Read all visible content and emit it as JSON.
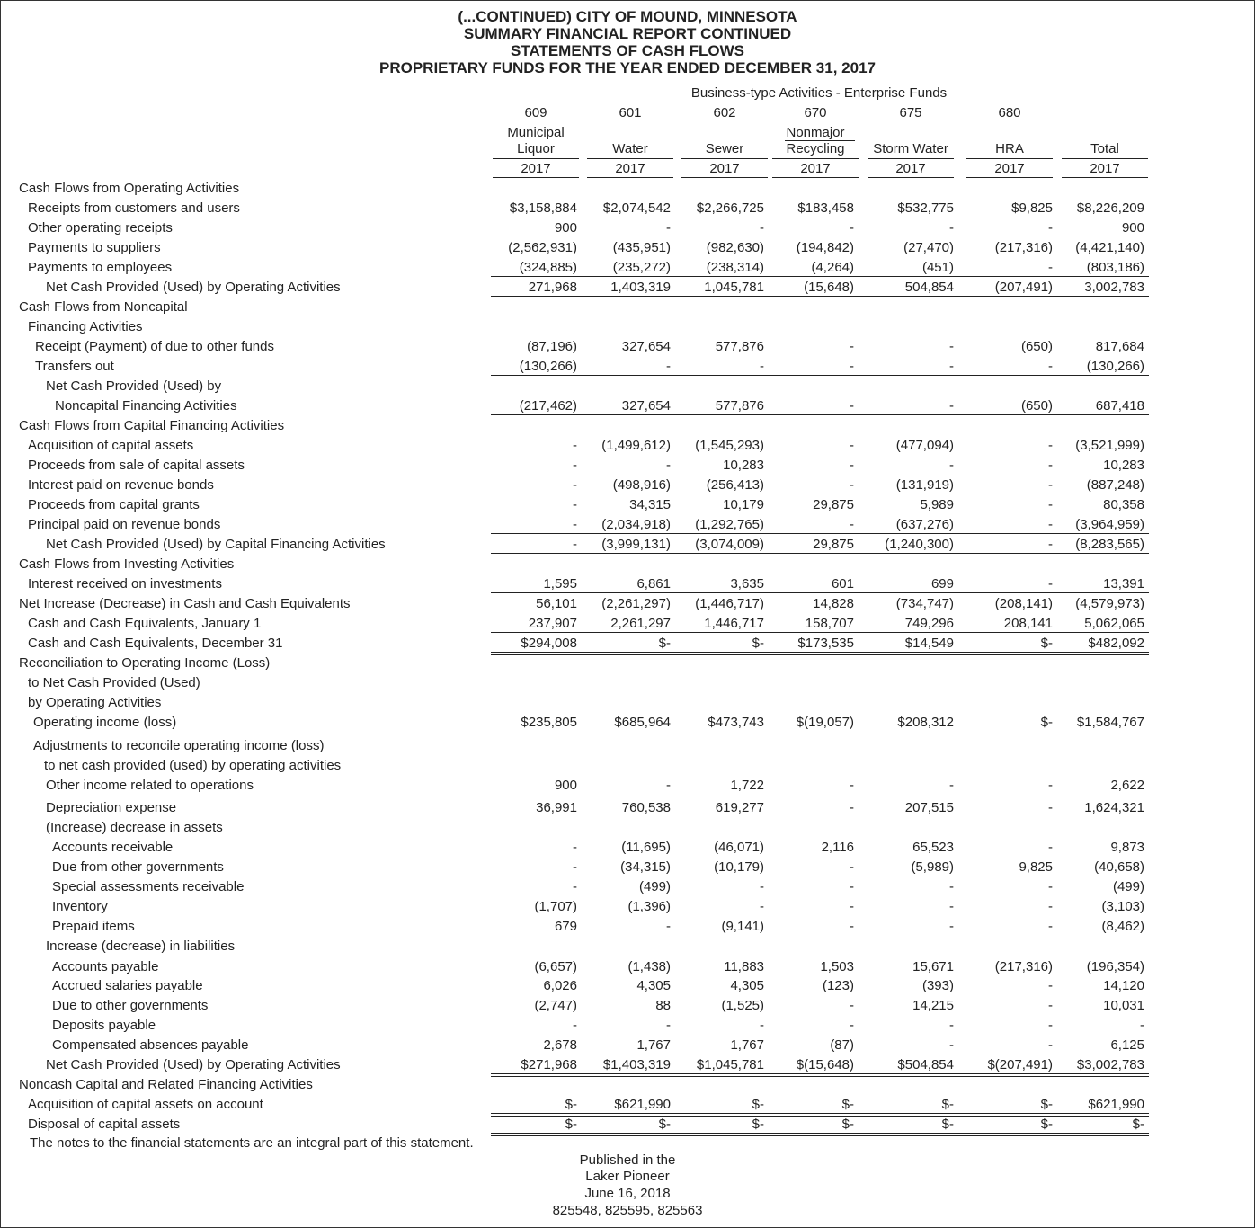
{
  "header": {
    "title": [
      "(...CONTINUED) CITY OF MOUND, MINNESOTA",
      "SUMMARY FINANCIAL REPORT CONTINUED",
      "STATEMENTS OF CASH FLOWS",
      "PROPRIETARY FUNDS FOR THE YEAR ENDED DECEMBER 31, 2017"
    ],
    "group": "Business-type Activities - Enterprise Funds",
    "columns": [
      {
        "number": "609",
        "name": [
          "Municipal",
          "Liquor"
        ],
        "year": "2017"
      },
      {
        "number": "601",
        "name": [
          "Water"
        ],
        "year": "2017"
      },
      {
        "number": "602",
        "name": [
          "Sewer"
        ],
        "year": "2017"
      },
      {
        "number": "670",
        "name": [
          "Nonmajor",
          "Recycling"
        ],
        "year": "2017"
      },
      {
        "number": "675",
        "name": [
          "Storm Water"
        ],
        "year": "2017"
      },
      {
        "number": "680",
        "name": [
          "HRA"
        ],
        "year": "2017"
      },
      {
        "name": [
          "Total"
        ],
        "year": "2017"
      }
    ]
  },
  "rows": [
    {
      "label": "Cash Flows from Operating Activities"
    },
    {
      "label": "Receipts from customers and users",
      "values": [
        "$3,158,884",
        "$2,074,542",
        "$2,266,725",
        "$183,458",
        "$532,775",
        "$9,825",
        "$8,226,209"
      ]
    },
    {
      "label": "Other operating receipts",
      "values": [
        "900",
        "-",
        "-",
        "-",
        "-",
        "-",
        "900"
      ]
    },
    {
      "label": "Payments to suppliers",
      "values": [
        "(2,562,931)",
        "(435,951)",
        "(982,630)",
        "(194,842)",
        "(27,470)",
        "(217,316)",
        "(4,421,140)"
      ]
    },
    {
      "label": "Payments to employees",
      "values": [
        "(324,885)",
        "(235,272)",
        "(238,314)",
        "(4,264)",
        "(451)",
        "-",
        "(803,186)"
      ]
    },
    {
      "label": "Net Cash Provided (Used) by Operating Activities",
      "values": [
        "271,968",
        "1,403,319",
        "1,045,781",
        "(15,648)",
        "504,854",
        "(207,491)",
        "3,002,783"
      ]
    },
    {
      "label": "Cash Flows from Noncapital"
    },
    {
      "label": "Financing Activities"
    },
    {
      "label": "Receipt (Payment) of due to other funds",
      "values": [
        "(87,196)",
        "327,654",
        "577,876",
        "-",
        "-",
        "(650)",
        "817,684"
      ]
    },
    {
      "label": "Transfers out",
      "values": [
        "(130,266)",
        "-",
        "-",
        "-",
        "-",
        "-",
        "(130,266)"
      ]
    },
    {
      "label": "Net Cash Provided (Used) by"
    },
    {
      "label": "Noncapital Financing Activities",
      "values": [
        "(217,462)",
        "327,654",
        "577,876",
        "-",
        "-",
        "(650)",
        "687,418"
      ]
    },
    {
      "label": "Cash Flows from Capital Financing Activities"
    },
    {
      "label": "Acquisition of capital assets",
      "values": [
        "-",
        "(1,499,612)",
        "(1,545,293)",
        "-",
        "(477,094)",
        "-",
        "(3,521,999)"
      ]
    },
    {
      "label": "Proceeds from sale of capital assets",
      "values": [
        "-",
        "-",
        "10,283",
        "-",
        "-",
        "-",
        "10,283"
      ]
    },
    {
      "label": "Interest paid on revenue bonds",
      "values": [
        "-",
        "(498,916)",
        "(256,413)",
        "-",
        "(131,919)",
        "-",
        "(887,248)"
      ]
    },
    {
      "label": "Proceeds from capital grants",
      "values": [
        "-",
        "34,315",
        "10,179",
        "29,875",
        "5,989",
        "-",
        "80,358"
      ]
    },
    {
      "label": "Principal paid on revenue bonds",
      "values": [
        "-",
        "(2,034,918)",
        "(1,292,765)",
        "-",
        "(637,276)",
        "-",
        "(3,964,959)"
      ]
    },
    {
      "label": "Net Cash Provided (Used) by Capital Financing Activities",
      "values": [
        "-",
        "(3,999,131)",
        "(3,074,009)",
        "29,875",
        "(1,240,300)",
        "-",
        "(8,283,565)"
      ]
    },
    {
      "label": "Cash Flows from Investing Activities"
    },
    {
      "label": "Interest received on investments",
      "values": [
        "1,595",
        "6,861",
        "3,635",
        "601",
        "699",
        "-",
        "13,391"
      ]
    },
    {
      "label": "Net Increase (Decrease) in Cash and Cash Equivalents",
      "values": [
        "56,101",
        "(2,261,297)",
        "(1,446,717)",
        "14,828",
        "(734,747)",
        "(208,141)",
        "(4,579,973)"
      ]
    },
    {
      "label": "Cash and Cash Equivalents, January 1",
      "values": [
        "237,907",
        "2,261,297",
        "1,446,717",
        "158,707",
        "749,296",
        "208,141",
        "5,062,065"
      ]
    },
    {
      "label": "Cash and Cash Equivalents, December 31",
      "values": [
        "$294,008",
        "$-",
        "$-",
        "$173,535",
        "$14,549",
        "$-",
        "$482,092"
      ]
    },
    {
      "label": "Reconciliation to Operating Income (Loss)"
    },
    {
      "label": "to Net Cash Provided (Used)"
    },
    {
      "label": "by Operating Activities"
    },
    {
      "label": "Operating income (loss)",
      "values": [
        "$235,805",
        "$685,964",
        "$473,743",
        "$(19,057)",
        "$208,312",
        "$-",
        "$1,584,767"
      ]
    },
    {
      "label": "Adjustments to reconcile operating income (loss)"
    },
    {
      "label": "to net cash provided (used) by operating activities"
    },
    {
      "label": "Other income related to operations",
      "values": [
        "900",
        "-",
        "1,722",
        "-",
        "-",
        "-",
        "2,622"
      ]
    },
    {
      "label": "Depreciation expense",
      "values": [
        "36,991",
        "760,538",
        "619,277",
        "-",
        "207,515",
        "-",
        "1,624,321"
      ]
    },
    {
      "label": "(Increase) decrease in assets"
    },
    {
      "label": "Accounts receivable",
      "values": [
        "-",
        "(11,695)",
        "(46,071)",
        "2,116",
        "65,523",
        "-",
        "9,873"
      ]
    },
    {
      "label": "Due from other governments",
      "values": [
        "-",
        "(34,315)",
        "(10,179)",
        "-",
        "(5,989)",
        "9,825",
        "(40,658)"
      ]
    },
    {
      "label": "Special assessments receivable",
      "values": [
        "-",
        "(499)",
        "-",
        "-",
        "-",
        "-",
        "(499)"
      ]
    },
    {
      "label": "Inventory",
      "values": [
        "(1,707)",
        "(1,396)",
        "-",
        "-",
        "-",
        "-",
        "(3,103)"
      ]
    },
    {
      "label": "Prepaid items",
      "values": [
        "679",
        "-",
        "(9,141)",
        "-",
        "-",
        "-",
        "(8,462)"
      ]
    },
    {
      "label": "Increase (decrease) in liabilities"
    },
    {
      "label": "Accounts payable",
      "values": [
        "(6,657)",
        "(1,438)",
        "11,883",
        "1,503",
        "15,671",
        "(217,316)",
        "(196,354)"
      ]
    },
    {
      "label": "Accrued salaries payable",
      "values": [
        "6,026",
        "4,305",
        "4,305",
        "(123)",
        "(393)",
        "-",
        "14,120"
      ]
    },
    {
      "label": "Due to other governments",
      "values": [
        "(2,747)",
        "88",
        "(1,525)",
        "-",
        "14,215",
        "-",
        "10,031"
      ]
    },
    {
      "label": "Deposits payable",
      "values": [
        "-",
        "-",
        "-",
        "-",
        "-",
        "-",
        "-"
      ]
    },
    {
      "label": "Compensated absences payable",
      "values": [
        "2,678",
        "1,767",
        "1,767",
        "(87)",
        "-",
        "-",
        "6,125"
      ]
    },
    {
      "label": "Net Cash Provided (Used) by Operating Activities",
      "values": [
        "$271,968",
        "$1,403,319",
        "$1,045,781",
        "$(15,648)",
        "$504,854",
        "$(207,491)",
        "$3,002,783"
      ]
    },
    {
      "label": "Noncash Capital and Related Financing Activities"
    },
    {
      "label": "Acquisition of capital assets on account",
      "values": [
        "$-",
        "$621,990",
        "$-",
        "$-",
        "$-",
        "$-",
        "$621,990"
      ]
    },
    {
      "label": "Disposal of capital assets",
      "values": [
        "$-",
        "$-",
        "$-",
        "$-",
        "$-",
        "$-",
        "$-"
      ]
    }
  ],
  "footnote": "The notes to the financial statements are an integral part of this statement.",
  "publisher": [
    "Published in the",
    "Laker Pioneer",
    "June 16, 2018",
    "825548, 825595, 825563"
  ]
}
